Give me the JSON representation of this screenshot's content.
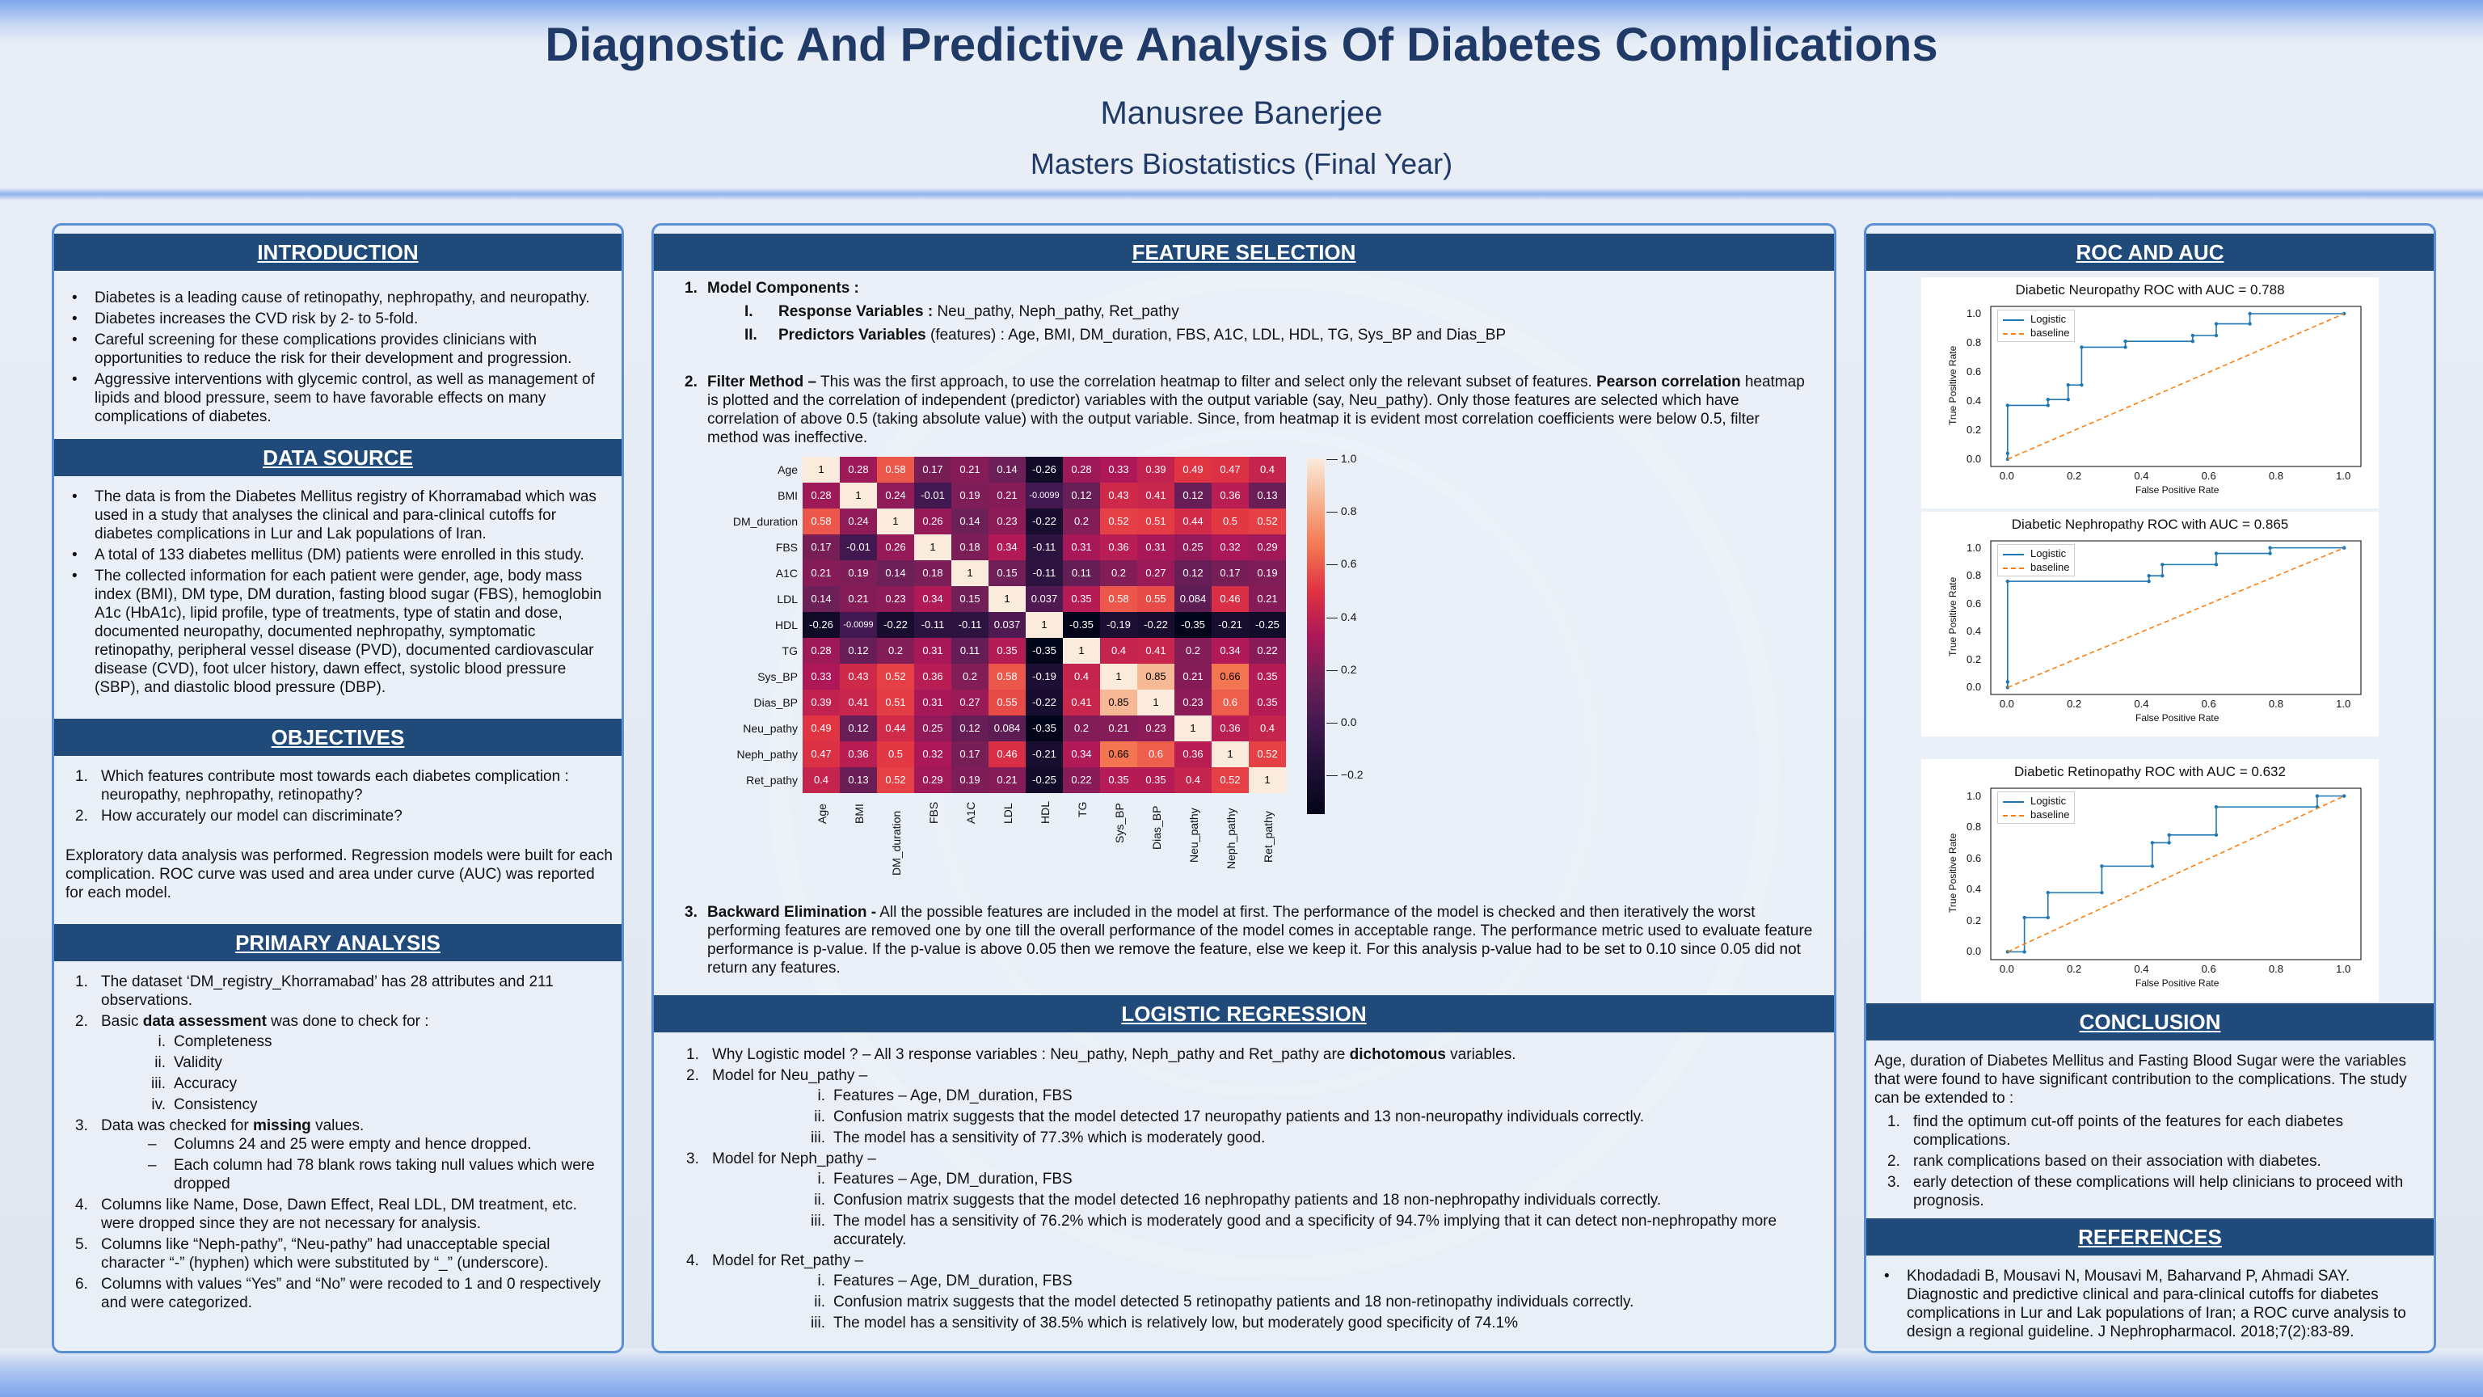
{
  "header": {
    "title": "Diagnostic And Predictive Analysis Of Diabetes Complications",
    "author": "Manusree Banerjee",
    "affiliation": "Masters Biostatistics (Final Year)"
  },
  "introduction": {
    "heading": "INTRODUCTION",
    "bullets": [
      "Diabetes is a leading cause of retinopathy, nephropathy, and neuropathy.",
      "Diabetes increases the CVD risk by 2- to 5-fold.",
      "Careful screening for these complications provides clinicians with opportunities to reduce the risk for their development and progression.",
      "Aggressive interventions with glycemic control, as well as management of lipids and blood pressure, seem to have favorable effects on many complications of diabetes."
    ]
  },
  "data_source": {
    "heading": "DATA SOURCE",
    "bullets": [
      "The data is from the Diabetes Mellitus registry of Khorramabad which was used in a study that analyses the clinical and para-clinical cutoffs for diabetes complications in Lur and Lak populations of Iran.",
      "A total of 133 diabetes mellitus (DM) patients were enrolled in this study.",
      "The collected information for each patient were gender, age, body mass index (BMI), DM type, DM duration, fasting blood sugar (FBS), hemoglobin A1c (HbA1c), lipid profile, type of treatments, type of statin and dose, documented neuropathy, documented nephropathy, symptomatic retinopathy, peripheral vessel disease (PVD), documented cardiovascular disease (CVD), foot ulcer history, dawn effect, systolic blood pressure (SBP), and diastolic blood pressure (DBP)."
    ]
  },
  "objectives": {
    "heading": "OBJECTIVES",
    "items": [
      {
        "n": "1.",
        "text": "Which features contribute most towards each diabetes complication : neuropathy, nephropathy, retinopathy?"
      },
      {
        "n": "2.",
        "text": "How accurately our model can discriminate?"
      }
    ],
    "paragraph": "Exploratory data analysis was performed. Regression models were built for each complication. ROC curve was used and area under curve (AUC) was reported for each model."
  },
  "primary": {
    "heading": "PRIMARY ANALYSIS",
    "i1": {
      "n": "1.",
      "text": "The dataset ‘DM_registry_Khorramabad’ has 28 attributes and 211 observations."
    },
    "i2": {
      "n": "2.",
      "pre": "Basic ",
      "bold": "data assessment",
      "post": " was done to check for :",
      "subs": [
        {
          "r": "i.",
          "t": "Completeness"
        },
        {
          "r": "ii.",
          "t": "Validity"
        },
        {
          "r": "iii.",
          "t": "Accuracy"
        },
        {
          "r": "iv.",
          "t": "Consistency"
        }
      ]
    },
    "i3": {
      "n": "3.",
      "pre": "Data was checked for ",
      "bold": "missing",
      "post": " values.",
      "dashes": [
        "Columns 24 and 25 were empty and hence dropped.",
        "Each column had 78 blank rows taking null values which were dropped"
      ]
    },
    "i4": {
      "n": "4.",
      "text": "Columns like Name, Dose, Dawn Effect, Real LDL, DM treatment, etc. were dropped since they are not necessary for analysis."
    },
    "i5": {
      "n": "5.",
      "text": "Columns like “Neph-pathy”, “Neu-pathy” had unacceptable special character “-” (hyphen) which were substituted by “_” (underscore)."
    },
    "i6": {
      "n": "6.",
      "text": "Columns with values “Yes” and “No” were recoded to 1 and 0 respectively and were categorized."
    }
  },
  "feature": {
    "heading": "FEATURE SELECTION",
    "mc_n": "1.",
    "mc_title": "Model Components :",
    "resp_r": "I.",
    "resp_label": "Response Variables :",
    "resp_text": "Neu_pathy, Neph_pathy, Ret_pathy",
    "pred_r": "II.",
    "pred_label": "Predictors Variables",
    "pred_text": "(features) : Age, BMI, DM_duration, FBS, A1C, LDL, HDL, TG, Sys_BP and Dias_BP",
    "fm_n": "2.",
    "fm_label": "Filter Method –",
    "fm_a": " This was the first approach, to use the correlation heatmap to filter and select only the relevant subset of features. ",
    "fm_bold": "Pearson correlation",
    "fm_b": " heatmap is plotted and the correlation of independent (predictor) variables with the output variable (say, Neu_pathy). Only those features are selected which have correlation of above 0.5 (taking absolute value) with the output variable. Since, from heatmap it is evident most correlation coefficients were below 0.5, filter method was ineffective.",
    "be_n": "3.",
    "be_label": "Backward Elimination -",
    "be_text": " All the possible features are included in the model at first. The performance of the model is checked and then iteratively the worst performing features are removed one by one till the overall performance of the model comes in acceptable range. The performance metric used to evaluate feature performance is p-value. If the p-value is above 0.05 then we remove the feature, else we keep it. For this analysis p-value had to be set to 0.10 since 0.05 did not return any features."
  },
  "chart_data": [
    {
      "type": "heatmap",
      "labels": [
        "Age",
        "BMI",
        "DM_duration",
        "FBS",
        "A1C",
        "LDL",
        "HDL",
        "TG",
        "Sys_BP",
        "Dias_BP",
        "Neu_pathy",
        "Neph_pathy",
        "Ret_pathy"
      ],
      "matrix": [
        [
          "1",
          "0.28",
          "0.58",
          "0.17",
          "0.21",
          "0.14",
          "-0.26",
          "0.28",
          "0.33",
          "0.39",
          "0.49",
          "0.47",
          "0.4"
        ],
        [
          "0.28",
          "1",
          "0.24",
          "-0.01",
          "0.19",
          "0.21",
          "-0.0099",
          "0.12",
          "0.43",
          "0.41",
          "0.12",
          "0.36",
          "0.13"
        ],
        [
          "0.58",
          "0.24",
          "1",
          "0.26",
          "0.14",
          "0.23",
          "-0.22",
          "0.2",
          "0.52",
          "0.51",
          "0.44",
          "0.5",
          "0.52"
        ],
        [
          "0.17",
          "-0.01",
          "0.26",
          "1",
          "0.18",
          "0.34",
          "-0.11",
          "0.31",
          "0.36",
          "0.31",
          "0.25",
          "0.32",
          "0.29"
        ],
        [
          "0.21",
          "0.19",
          "0.14",
          "0.18",
          "1",
          "0.15",
          "-0.11",
          "0.11",
          "0.2",
          "0.27",
          "0.12",
          "0.17",
          "0.19"
        ],
        [
          "0.14",
          "0.21",
          "0.23",
          "0.34",
          "0.15",
          "1",
          "0.037",
          "0.35",
          "0.58",
          "0.55",
          "0.084",
          "0.46",
          "0.21"
        ],
        [
          "-0.26",
          "-0.0099",
          "-0.22",
          "-0.11",
          "-0.11",
          "0.037",
          "1",
          "-0.35",
          "-0.19",
          "-0.22",
          "-0.35",
          "-0.21",
          "-0.25"
        ],
        [
          "0.28",
          "0.12",
          "0.2",
          "0.31",
          "0.11",
          "0.35",
          "-0.35",
          "1",
          "0.4",
          "0.41",
          "0.2",
          "0.34",
          "0.22"
        ],
        [
          "0.33",
          "0.43",
          "0.52",
          "0.36",
          "0.2",
          "0.58",
          "-0.19",
          "0.4",
          "1",
          "0.85",
          "0.21",
          "0.66",
          "0.35"
        ],
        [
          "0.39",
          "0.41",
          "0.51",
          "0.31",
          "0.27",
          "0.55",
          "-0.22",
          "0.41",
          "0.85",
          "1",
          "0.23",
          "0.6",
          "0.35"
        ],
        [
          "0.49",
          "0.12",
          "0.44",
          "0.25",
          "0.12",
          "0.084",
          "-0.35",
          "0.2",
          "0.21",
          "0.23",
          "1",
          "0.36",
          "0.4"
        ],
        [
          "0.47",
          "0.36",
          "0.5",
          "0.32",
          "0.17",
          "0.46",
          "-0.21",
          "0.34",
          "0.66",
          "0.6",
          "0.36",
          "1",
          "0.52"
        ],
        [
          "0.4",
          "0.13",
          "0.52",
          "0.29",
          "0.19",
          "0.21",
          "-0.25",
          "0.22",
          "0.35",
          "0.35",
          "0.4",
          "0.52",
          "1"
        ]
      ],
      "colorbar_ticks": [
        "1.0",
        "0.8",
        "0.6",
        "0.4",
        "0.2",
        "0.0",
        "−0.2"
      ],
      "colorbar_range": [
        -0.35,
        1.0
      ]
    },
    {
      "type": "line",
      "title": "Diabetic Neuropathy ROC with AUC = 0.788",
      "xlabel": "False Positive Rate",
      "ylabel": "True Positive Rate",
      "xlim": [
        0,
        1
      ],
      "ylim": [
        0,
        1
      ],
      "ticks": [
        "0.0",
        "0.2",
        "0.4",
        "0.6",
        "0.8",
        "1.0"
      ],
      "legend": [
        "Logistic",
        "baseline"
      ],
      "legend_position": "top-left",
      "series": [
        {
          "name": "Logistic",
          "x": [
            0,
            0,
            0,
            0.12,
            0.12,
            0.18,
            0.18,
            0.22,
            0.22,
            0.35,
            0.35,
            0.55,
            0.55,
            0.62,
            0.62,
            0.72,
            0.72,
            1
          ],
          "y": [
            0,
            0.04,
            0.37,
            0.37,
            0.41,
            0.41,
            0.51,
            0.51,
            0.77,
            0.77,
            0.81,
            0.81,
            0.85,
            0.85,
            0.93,
            0.93,
            1,
            1
          ]
        },
        {
          "name": "baseline",
          "x": [
            0,
            1
          ],
          "y": [
            0,
            1
          ]
        }
      ]
    },
    {
      "type": "line",
      "title": "Diabetic Nephropathy ROC with AUC = 0.865",
      "xlabel": "False Positive Rate",
      "ylabel": "True Positive Rate",
      "xlim": [
        0,
        1
      ],
      "ylim": [
        0,
        1
      ],
      "ticks": [
        "0.0",
        "0.2",
        "0.4",
        "0.6",
        "0.8",
        "1.0"
      ],
      "legend": [
        "Logistic",
        "baseline"
      ],
      "legend_position": "top-left",
      "series": [
        {
          "name": "Logistic",
          "x": [
            0,
            0,
            0,
            0.42,
            0.42,
            0.46,
            0.46,
            0.62,
            0.62,
            0.78,
            0.78,
            1
          ],
          "y": [
            0,
            0.04,
            0.76,
            0.76,
            0.8,
            0.8,
            0.88,
            0.88,
            0.96,
            0.96,
            1,
            1
          ]
        },
        {
          "name": "baseline",
          "x": [
            0,
            1
          ],
          "y": [
            0,
            1
          ]
        }
      ]
    },
    {
      "type": "line",
      "title": "Diabetic Retinopathy ROC with AUC = 0.632",
      "xlabel": "False Positive Rate",
      "ylabel": "True Positive Rate",
      "xlim": [
        0,
        1
      ],
      "ylim": [
        0,
        1
      ],
      "ticks": [
        "0.0",
        "0.2",
        "0.4",
        "0.6",
        "0.8",
        "1.0"
      ],
      "legend": [
        "Logistic",
        "baseline"
      ],
      "legend_position": "top-left",
      "series": [
        {
          "name": "Logistic",
          "x": [
            0,
            0.05,
            0.05,
            0.12,
            0.12,
            0.28,
            0.28,
            0.43,
            0.43,
            0.48,
            0.48,
            0.62,
            0.62,
            0.92,
            0.92,
            1
          ],
          "y": [
            0,
            0,
            0.22,
            0.22,
            0.38,
            0.38,
            0.55,
            0.55,
            0.7,
            0.7,
            0.75,
            0.75,
            0.93,
            0.93,
            1,
            1
          ]
        },
        {
          "name": "baseline",
          "x": [
            0,
            1
          ],
          "y": [
            0,
            1
          ]
        }
      ]
    }
  ],
  "logistic": {
    "heading": "LOGISTIC REGRESSION",
    "i1": {
      "n": "1.",
      "pre": "Why Logistic model ? – All 3 response variables : Neu_pathy, Neph_pathy and Ret_pathy are ",
      "bold": "dichotomous",
      "post": " variables."
    },
    "models": [
      {
        "n": "2.",
        "title": "Model for Neu_pathy –",
        "subs": [
          {
            "r": "i.",
            "t": "Features – Age, DM_duration, FBS"
          },
          {
            "r": "ii.",
            "t": "Confusion matrix suggests that the model detected 17 neuropathy patients and 13 non-neuropathy individuals correctly."
          },
          {
            "r": "iii.",
            "t": "The model has a sensitivity of 77.3% which is moderately good."
          }
        ]
      },
      {
        "n": "3.",
        "title": "Model for Neph_pathy –",
        "subs": [
          {
            "r": "i.",
            "t": "Features – Age, DM_duration, FBS"
          },
          {
            "r": "ii.",
            "t": "Confusion matrix suggests that the model detected 16 nephropathy patients and 18 non-nephropathy individuals correctly."
          },
          {
            "r": "iii.",
            "t": "The model has a sensitivity of 76.2% which is moderately good and a specificity of 94.7% implying that it can detect non-nephropathy more accurately."
          }
        ]
      },
      {
        "n": "4.",
        "title": "Model for Ret_pathy –",
        "subs": [
          {
            "r": "i.",
            "t": "Features – Age, DM_duration, FBS"
          },
          {
            "r": "ii.",
            "t": "Confusion matrix suggests that the model detected 5 retinopathy patients and 18 non-retinopathy individuals correctly."
          },
          {
            "r": "iii.",
            "t": "The model has a sensitivity of 38.5% which is relatively low, but moderately good specificity of 74.1%"
          }
        ]
      }
    ]
  },
  "roc_heading": "ROC AND AUC",
  "conclusion": {
    "heading": "CONCLUSION",
    "paragraph": "Age, duration of Diabetes Mellitus and Fasting Blood Sugar were the variables that were found to have significant contribution to the complications. The study can be extended to :",
    "items": [
      {
        "n": "1.",
        "text": "find the optimum cut-off points of the features for each diabetes complications."
      },
      {
        "n": "2.",
        "text": "rank complications based on their association with diabetes."
      },
      {
        "n": "3.",
        "text": "early detection of these complications will help clinicians to proceed with prognosis."
      }
    ]
  },
  "references": {
    "heading": "REFERENCES",
    "items": [
      "Khodadadi B, Mousavi N, Mousavi M, Baharvand P, Ahmadi SAY. Diagnostic and predictive clinical and para-clinical cutoffs for diabetes complications in Lur and Lak populations of Iran; a ROC curve analysis to design a regional guideline. J Nephropharmacol. 2018;7(2):83-89."
    ]
  },
  "colors": {
    "header_bar": "#1f4a7a",
    "panel_border": "#5a8fd6",
    "title": "#1f3a66",
    "roc_line": "#1f77b4",
    "baseline": "#ff7f0e"
  }
}
